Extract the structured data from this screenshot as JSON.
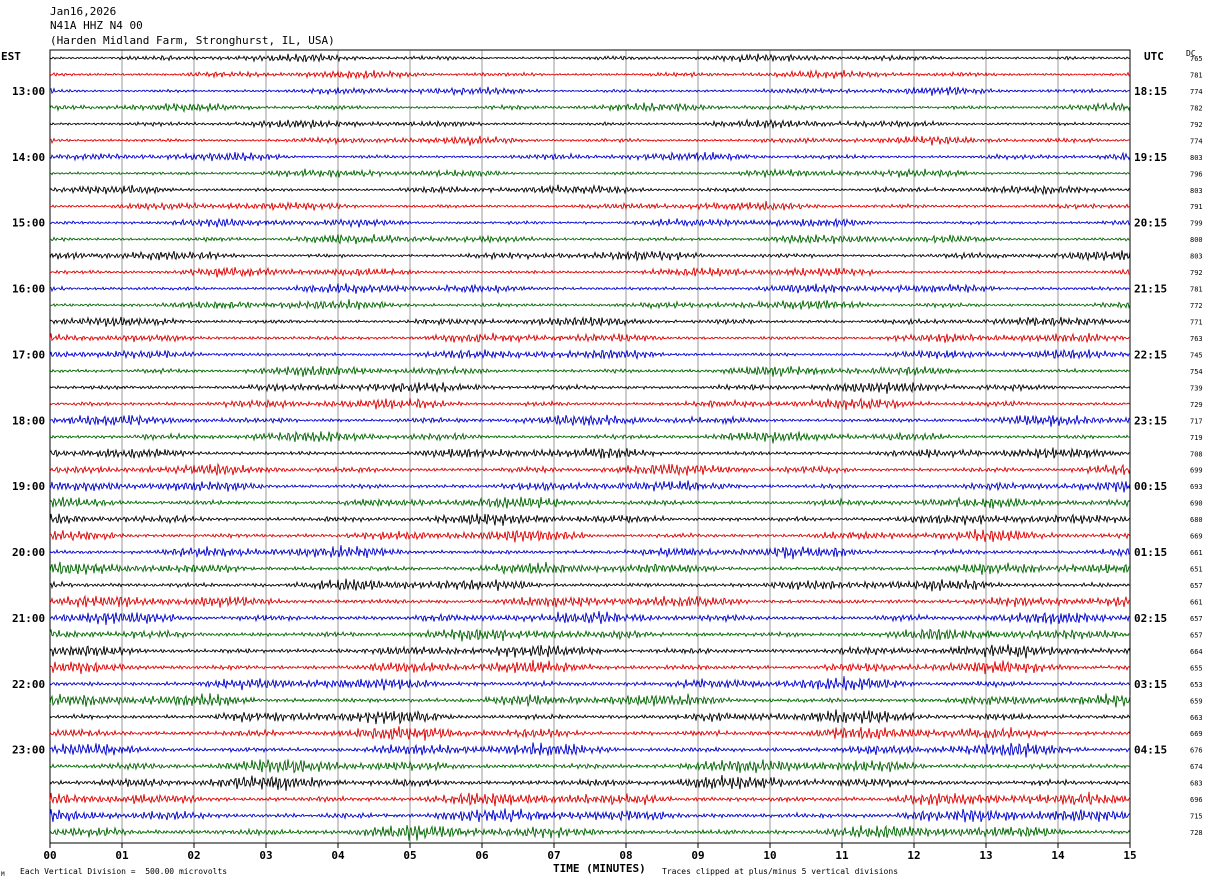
{
  "header": {
    "date": "Jan16,2026",
    "station": "N41A HHZ N4 00",
    "location": "(Harden Midland Farm, Stronghurst, IL, USA)"
  },
  "left_label": "EST",
  "right_label": "UTC",
  "dc_label": "DC",
  "footer": {
    "scale_note": "Each Vertical Division =  500.00 microvolts",
    "clip_note": "Traces clipped at plus/minus 5 vertical divisions",
    "corner_mark": "M"
  },
  "chart_data": {
    "type": "line",
    "xlabel": "TIME (MINUTES)",
    "xlim": [
      0,
      15
    ],
    "x_ticks": [
      "00",
      "01",
      "02",
      "03",
      "04",
      "05",
      "06",
      "07",
      "08",
      "09",
      "10",
      "11",
      "12",
      "13",
      "14",
      "15"
    ],
    "trace_colors": [
      "#000000",
      "#dd0000",
      "#0000cc",
      "#006600"
    ],
    "rows_per_hour": 4,
    "start_row_offset": 2,
    "left_hour_labels": [
      "13:00",
      "14:00",
      "15:00",
      "16:00",
      "17:00",
      "18:00",
      "19:00",
      "20:00",
      "21:00",
      "22:00",
      "23:00"
    ],
    "right_hour_labels": [
      "18:15",
      "19:15",
      "20:15",
      "21:15",
      "22:15",
      "23:15",
      "00:15",
      "01:15",
      "02:15",
      "03:15",
      "04:15"
    ],
    "dc_offsets": [
      765,
      781,
      774,
      782,
      792,
      774,
      803,
      796,
      803,
      791,
      799,
      800,
      803,
      792,
      781,
      772,
      771,
      763,
      745,
      754,
      739,
      729,
      717,
      719,
      708,
      699,
      693,
      690,
      680,
      669,
      661,
      651,
      657,
      661,
      657,
      657,
      664,
      655,
      653,
      659,
      663,
      669,
      676,
      674,
      683,
      696,
      715,
      728
    ]
  }
}
